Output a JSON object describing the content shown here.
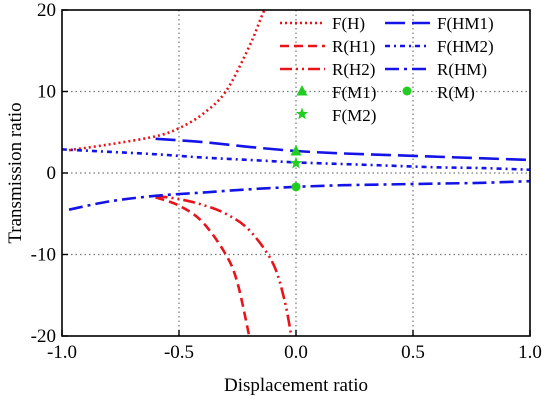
{
  "chart_data": {
    "type": "line",
    "title": "",
    "xlabel": "Displacement ratio",
    "ylabel": "Transmission ratio",
    "xlim": [
      -1.0,
      1.0
    ],
    "ylim": [
      -20,
      20
    ],
    "xticks": [
      -1.0,
      -0.5,
      0.0,
      0.5,
      1.0
    ],
    "xtick_labels": [
      "-1.0",
      "-0.5",
      "0.0",
      "0.5",
      "1.0"
    ],
    "yticks": [
      -20,
      -10,
      0,
      10,
      20
    ],
    "ytick_labels": [
      "-20",
      "-10",
      "0",
      "10",
      "20"
    ],
    "grid": true,
    "legend_position": "top-right",
    "series": [
      {
        "name": "F(H)",
        "color": "#e8141b",
        "dash": "dot",
        "x": [
          -0.97,
          -0.8,
          -0.6,
          -0.5,
          -0.4,
          -0.3,
          -0.2,
          -0.15,
          -0.12
        ],
        "y": [
          2.8,
          3.5,
          4.5,
          5.5,
          7.2,
          10.0,
          15.5,
          19.0,
          21.0
        ]
      },
      {
        "name": "R(H1)",
        "color": "#e8141b",
        "dash": "dash",
        "x": [
          -0.6,
          -0.5,
          -0.4,
          -0.3,
          -0.25,
          -0.2
        ],
        "y": [
          -3.0,
          -4.0,
          -6.0,
          -10.0,
          -13.5,
          -20.0
        ]
      },
      {
        "name": "R(H2)",
        "color": "#e8141b",
        "dash": "dashdotdot",
        "x": [
          -0.6,
          -0.5,
          -0.4,
          -0.3,
          -0.2,
          -0.1,
          -0.05,
          -0.02
        ],
        "y": [
          -2.8,
          -3.2,
          -3.9,
          -5.0,
          -7.0,
          -11.0,
          -15.5,
          -20.0
        ]
      },
      {
        "name": "F(HM1)",
        "color": "#1414e6",
        "dash": "longdash",
        "x": [
          -0.6,
          -0.4,
          -0.2,
          0.0,
          0.2,
          0.4,
          0.6,
          0.8,
          1.0
        ],
        "y": [
          4.2,
          3.8,
          3.2,
          2.7,
          2.4,
          2.2,
          2.0,
          1.8,
          1.6
        ]
      },
      {
        "name": "F(HM2)",
        "color": "#1414e6",
        "dash": "shortdash",
        "x": [
          -1.0,
          -0.8,
          -0.6,
          -0.4,
          -0.2,
          0.0,
          0.2,
          0.4,
          0.6,
          0.8,
          1.0
        ],
        "y": [
          2.9,
          2.6,
          2.3,
          1.9,
          1.6,
          1.3,
          1.1,
          0.9,
          0.7,
          0.6,
          0.4
        ]
      },
      {
        "name": "R(HM)",
        "color": "#1414e6",
        "dash": "dashdot",
        "x": [
          -0.97,
          -0.8,
          -0.6,
          -0.4,
          -0.2,
          0.0,
          0.2,
          0.4,
          0.6,
          0.8,
          1.0
        ],
        "y": [
          -4.5,
          -3.5,
          -2.8,
          -2.4,
          -2.0,
          -1.7,
          -1.5,
          -1.4,
          -1.3,
          -1.2,
          -1.0
        ]
      },
      {
        "name": "F(M1)",
        "color": "#22cc22",
        "marker": "triangle",
        "x": [
          0.0
        ],
        "y": [
          2.7
        ]
      },
      {
        "name": "F(M2)",
        "color": "#22cc22",
        "marker": "star",
        "x": [
          0.0
        ],
        "y": [
          1.2
        ]
      },
      {
        "name": "R(M)",
        "color": "#22cc22",
        "marker": "circle",
        "x": [
          0.0
        ],
        "y": [
          -1.7
        ]
      }
    ]
  }
}
